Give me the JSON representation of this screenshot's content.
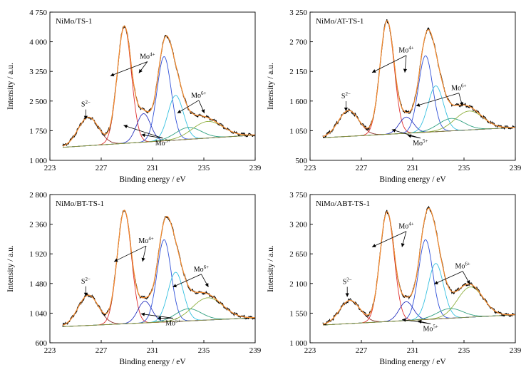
{
  "chart_data": [
    {
      "type": "line",
      "title": "NiMo/TS-1",
      "xlabel": "Binding energy / eV",
      "ylabel": "Intensity / a.u.",
      "xlim": [
        223,
        239
      ],
      "ylim": [
        1000,
        4750
      ],
      "xticks": [
        "223",
        "227",
        "231",
        "235",
        "239"
      ],
      "yticks": [
        "1 000",
        "1 750",
        "2 500",
        "3 250",
        "4 000",
        "4 750"
      ],
      "baseline": [
        [
          224,
          1330
        ],
        [
          239,
          1640
        ]
      ],
      "peaks": [
        {
          "label": "S2-",
          "center": 226.0,
          "height": 720,
          "width": 0.8,
          "color": "#8b2b2b"
        },
        {
          "label": "Mo4+ 3d5/2",
          "center": 228.8,
          "height": 2950,
          "width": 0.55,
          "color": "#e03030"
        },
        {
          "label": "Mo5+ 3d5/2",
          "center": 230.3,
          "height": 720,
          "width": 0.55,
          "color": "#2b35c0"
        },
        {
          "label": "Mo4+ 3d3/2",
          "center": 231.9,
          "height": 2130,
          "width": 0.55,
          "color": "#3050d8"
        },
        {
          "label": "Mo5+ 3d3/2",
          "center": 232.8,
          "height": 1130,
          "width": 0.6,
          "color": "#35c0e0"
        },
        {
          "label": "Mo6+ 3d5/2",
          "center": 233.8,
          "height": 300,
          "width": 1.0,
          "color": "#30a080"
        },
        {
          "label": "Mo6+ 3d3/2",
          "center": 235.3,
          "height": 420,
          "width": 1.2,
          "color": "#90b040"
        }
      ],
      "annotations": [
        {
          "label": "S",
          "sup": "2−",
          "x": 225.8,
          "y": 2360
        },
        {
          "label": "Mo",
          "sup": "4+",
          "x": 230.6,
          "y": 3570
        },
        {
          "label": "Mo",
          "sup": "6+",
          "x": 234.6,
          "y": 2590
        },
        {
          "label": "Mo",
          "sup": "5+",
          "x": 231.8,
          "y": 1380
        }
      ]
    },
    {
      "type": "line",
      "title": "NiMo/AT-TS-1",
      "xlabel": "Binding energy / eV",
      "ylabel": "Intensity / a.u.",
      "xlim": [
        223,
        239
      ],
      "ylim": [
        500,
        3250
      ],
      "xticks": [
        "223",
        "227",
        "231",
        "235",
        "239"
      ],
      "yticks": [
        "500",
        "1 050",
        "1 600",
        "2 150",
        "2 700",
        "3 250"
      ],
      "baseline": [
        [
          224,
          920
        ],
        [
          239,
          1110
        ]
      ],
      "peaks": [
        {
          "label": "S2-",
          "center": 226.0,
          "height": 480,
          "width": 0.8,
          "color": "#8b2b2b"
        },
        {
          "label": "Mo4+ 3d5/2",
          "center": 229.0,
          "height": 2100,
          "width": 0.55,
          "color": "#e03030"
        },
        {
          "label": "Mo5+ 3d5/2",
          "center": 230.5,
          "height": 300,
          "width": 0.55,
          "color": "#2b35c0"
        },
        {
          "label": "Mo4+ 3d3/2",
          "center": 232.0,
          "height": 1420,
          "width": 0.55,
          "color": "#3050d8"
        },
        {
          "label": "Mo5+ 3d3/2",
          "center": 232.8,
          "height": 850,
          "width": 0.6,
          "color": "#35c0e0"
        },
        {
          "label": "Mo6+ 3d5/2",
          "center": 234.0,
          "height": 230,
          "width": 1.0,
          "color": "#30a080"
        },
        {
          "label": "Mo6+ 3d3/2",
          "center": 235.4,
          "height": 350,
          "width": 1.1,
          "color": "#90b040"
        }
      ],
      "annotations": [
        {
          "label": "S",
          "sup": "2−",
          "x": 225.8,
          "y": 1650
        },
        {
          "label": "Mo",
          "sup": "4+",
          "x": 230.5,
          "y": 2500
        },
        {
          "label": "Mo",
          "sup": "6+",
          "x": 234.6,
          "y": 1800
        },
        {
          "label": "Mo",
          "sup": "5+",
          "x": 231.6,
          "y": 780
        }
      ]
    },
    {
      "type": "line",
      "title": "NiMo/BT-TS-1",
      "xlabel": "Binding energy / eV",
      "ylabel": "Intensity / a.u.",
      "xlim": [
        223,
        239
      ],
      "ylim": [
        600,
        2800
      ],
      "xticks": [
        "223",
        "227",
        "231",
        "235",
        "239"
      ],
      "yticks": [
        "600",
        "1 040",
        "1 480",
        "1 920",
        "2 360",
        "2 800"
      ],
      "baseline": [
        [
          224,
          840
        ],
        [
          239,
          970
        ]
      ],
      "peaks": [
        {
          "label": "S2-",
          "center": 226.0,
          "height": 450,
          "width": 0.8,
          "color": "#8b2b2b"
        },
        {
          "label": "Mo4+ 3d5/2",
          "center": 228.8,
          "height": 1680,
          "width": 0.55,
          "color": "#e03030"
        },
        {
          "label": "Mo5+ 3d5/2",
          "center": 230.4,
          "height": 320,
          "width": 0.55,
          "color": "#2b35c0"
        },
        {
          "label": "Mo4+ 3d3/2",
          "center": 231.9,
          "height": 1220,
          "width": 0.55,
          "color": "#3050d8"
        },
        {
          "label": "Mo5+ 3d3/2",
          "center": 232.8,
          "height": 730,
          "width": 0.6,
          "color": "#35c0e0"
        },
        {
          "label": "Mo6+ 3d5/2",
          "center": 233.8,
          "height": 180,
          "width": 1.0,
          "color": "#30a080"
        },
        {
          "label": "Mo6+ 3d3/2",
          "center": 235.3,
          "height": 330,
          "width": 1.2,
          "color": "#90b040"
        }
      ],
      "annotations": [
        {
          "label": "S",
          "sup": "2−",
          "x": 225.8,
          "y": 1480
        },
        {
          "label": "Mo",
          "sup": "4+",
          "x": 230.5,
          "y": 2080
        },
        {
          "label": "Mo",
          "sup": "6+",
          "x": 234.8,
          "y": 1660
        },
        {
          "label": "Mo",
          "sup": "5+",
          "x": 232.6,
          "y": 860
        }
      ]
    },
    {
      "type": "line",
      "title": "NiMo/ABT-TS-1",
      "xlabel": "Binding energy / eV",
      "ylabel": "Intensity / a.u.",
      "xlim": [
        223,
        239
      ],
      "ylim": [
        1000,
        3750
      ],
      "xticks": [
        "223",
        "227",
        "231",
        "235",
        "239"
      ],
      "yticks": [
        "1 000",
        "1 550",
        "2 100",
        "2 650",
        "3 200",
        "3 750"
      ],
      "baseline": [
        [
          224,
          1330
        ],
        [
          239,
          1520
        ]
      ],
      "peaks": [
        {
          "label": "S2-",
          "center": 226.1,
          "height": 430,
          "width": 0.8,
          "color": "#8b2b2b"
        },
        {
          "label": "Mo4+ 3d5/2",
          "center": 229.0,
          "height": 2030,
          "width": 0.55,
          "color": "#e03030"
        },
        {
          "label": "Mo5+ 3d5/2",
          "center": 230.5,
          "height": 350,
          "width": 0.55,
          "color": "#2b35c0"
        },
        {
          "label": "Mo4+ 3d3/2",
          "center": 232.0,
          "height": 1480,
          "width": 0.55,
          "color": "#3050d8"
        },
        {
          "label": "Mo5+ 3d3/2",
          "center": 232.8,
          "height": 1030,
          "width": 0.6,
          "color": "#35c0e0"
        },
        {
          "label": "Mo6+ 3d5/2",
          "center": 233.9,
          "height": 180,
          "width": 1.0,
          "color": "#30a080"
        },
        {
          "label": "Mo6+ 3d3/2",
          "center": 235.5,
          "height": 560,
          "width": 1.0,
          "color": "#90b040"
        }
      ],
      "annotations": [
        {
          "label": "S",
          "sup": "2−",
          "x": 225.9,
          "y": 2090
        },
        {
          "label": "Mo",
          "sup": "4+",
          "x": 230.5,
          "y": 3120
        },
        {
          "label": "Mo",
          "sup": "6+",
          "x": 234.9,
          "y": 2380
        },
        {
          "label": "Mo",
          "sup": "5+",
          "x": 232.4,
          "y": 1220
        }
      ]
    }
  ],
  "style": {
    "envelope_color": "#f08a30",
    "raw_color": "#000000",
    "baseline_color": "#8a8a40"
  }
}
